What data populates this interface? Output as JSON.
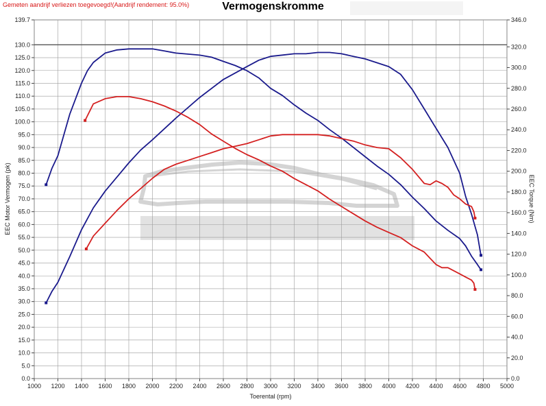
{
  "header": {
    "note": "Gemeten aandrijf verliezen toegevoegd!(Aandrijf rendement: 95.0%)",
    "title": "Vermogenskromme"
  },
  "colors": {
    "tuned": "#1a1a8c",
    "stock": "#d42020",
    "grid": "#9a9a9a",
    "ref_line": "#555555"
  },
  "chart_data": {
    "type": "line",
    "title": "Vermogenskromme",
    "xlabel": "Toerental (rpm)",
    "ylabel": "EEC Motor Vermogen (pk)",
    "y2label": "EEC Torque (Nm)",
    "xlim": [
      1000,
      5000
    ],
    "ylim": [
      0,
      139.7
    ],
    "y2lim": [
      0,
      346
    ],
    "grid": true,
    "x_ticks": [
      "1000",
      "1200",
      "1400",
      "1600",
      "1800",
      "2000",
      "2200",
      "2400",
      "2600",
      "2800",
      "3000",
      "3200",
      "3400",
      "3600",
      "3800",
      "4000",
      "4200",
      "4400",
      "4600",
      "4800",
      "5000"
    ],
    "y_ticks": [
      "0.0",
      "5.0",
      "10.0",
      "15.0",
      "20.0",
      "25.0",
      "30.0",
      "35.0",
      "40.0",
      "45.0",
      "50.0",
      "55.0",
      "60.0",
      "65.0",
      "70.0",
      "75.0",
      "80.0",
      "85.0",
      "90.0",
      "95.0",
      "100.0",
      "105.0",
      "110.0",
      "115.0",
      "120.0",
      "125.0",
      "130.0",
      "139.7"
    ],
    "y2_ticks": [
      "0.0",
      "20.0",
      "40.0",
      "60.0",
      "80.0",
      "100.0",
      "120.0",
      "140.0",
      "160.0",
      "180.0",
      "200.0",
      "220.0",
      "240.0",
      "260.0",
      "280.0",
      "300.0",
      "320.0",
      "346.0"
    ],
    "reference_line_y": 130,
    "series": [
      {
        "axis": "right",
        "color": "#1a1a8c",
        "x": [
          1100,
          1150,
          1200,
          1300,
          1400,
          1450,
          1500,
          1600,
          1700,
          1800,
          1900,
          2000,
          2100,
          2200,
          2300,
          2400,
          2500,
          2600,
          2700,
          2800,
          2900,
          3000,
          3100,
          3200,
          3300,
          3400,
          3500,
          3600,
          3700,
          3800,
          3900,
          4000,
          4100,
          4200,
          4300,
          4400,
          4500,
          4600,
          4650,
          4700,
          4750,
          4780
        ],
        "y": [
          187,
          203,
          215,
          255,
          285,
          297,
          305,
          314,
          317,
          318,
          318,
          318,
          316,
          314,
          313,
          312,
          310,
          306,
          302,
          297,
          290,
          280,
          273,
          264,
          256,
          249,
          240,
          232,
          223,
          214,
          205,
          197,
          187,
          175,
          164,
          152,
          143,
          135,
          128,
          118,
          110,
          105
        ]
      },
      {
        "axis": "left",
        "color": "#1a1a8c",
        "x": [
          1100,
          1150,
          1200,
          1300,
          1400,
          1500,
          1600,
          1700,
          1800,
          1900,
          2000,
          2200,
          2400,
          2600,
          2800,
          2900,
          3000,
          3100,
          3200,
          3300,
          3400,
          3500,
          3600,
          3700,
          3800,
          3900,
          4000,
          4100,
          4200,
          4300,
          4400,
          4500,
          4600,
          4650,
          4700,
          4750,
          4780
        ],
        "y": [
          29.5,
          34,
          37.5,
          47.5,
          58,
          66.5,
          73,
          78.5,
          84,
          89,
          93,
          101.5,
          109.5,
          116.5,
          121.5,
          124,
          125.5,
          126,
          126.5,
          126.5,
          127,
          127,
          126.5,
          125.5,
          124.5,
          123,
          121.5,
          118.5,
          112.5,
          105,
          97.5,
          90,
          80,
          71,
          64,
          56,
          48
        ]
      },
      {
        "axis": "right",
        "color": "#d42020",
        "x": [
          1430,
          1500,
          1600,
          1700,
          1800,
          1900,
          2000,
          2100,
          2200,
          2300,
          2400,
          2500,
          2600,
          2700,
          2800,
          2900,
          3000,
          3100,
          3200,
          3300,
          3400,
          3500,
          3600,
          3700,
          3800,
          3900,
          4000,
          4100,
          4200,
          4300,
          4350,
          4400,
          4450,
          4500,
          4550,
          4600,
          4650,
          4700,
          4720,
          4730
        ],
        "y": [
          249,
          265,
          270,
          272,
          272,
          270,
          267,
          263,
          258,
          252,
          245,
          236,
          229,
          222,
          216,
          211,
          205,
          200,
          193,
          187,
          181,
          173,
          166,
          159,
          152,
          146,
          141,
          136,
          128,
          122,
          116,
          110,
          107,
          107,
          104,
          101,
          98,
          95,
          92,
          86
        ]
      },
      {
        "axis": "left",
        "color": "#d42020",
        "x": [
          1440,
          1500,
          1600,
          1700,
          1800,
          1900,
          2000,
          2100,
          2200,
          2300,
          2400,
          2500,
          2600,
          2700,
          2800,
          2900,
          3000,
          3100,
          3200,
          3300,
          3400,
          3500,
          3600,
          3700,
          3800,
          3900,
          4000,
          4100,
          4200,
          4300,
          4350,
          4400,
          4450,
          4500,
          4550,
          4600,
          4650,
          4700,
          4720,
          4730
        ],
        "y": [
          50.5,
          55.5,
          60.5,
          65.5,
          70,
          74,
          78,
          81.5,
          83.5,
          85,
          86.5,
          88,
          89.5,
          90.5,
          91.5,
          93,
          94.5,
          95,
          95,
          95,
          95,
          94.5,
          93.5,
          92.5,
          91,
          90,
          89.5,
          86,
          81.5,
          76,
          75.5,
          77,
          76,
          74.5,
          71.5,
          70,
          68,
          67,
          65,
          62.5
        ]
      }
    ]
  }
}
